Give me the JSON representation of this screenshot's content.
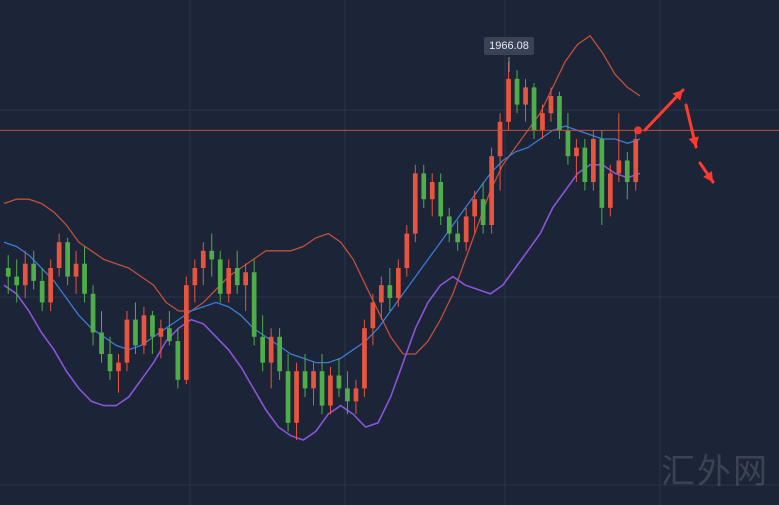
{
  "watermark": "汇外网",
  "chart_data": {
    "type": "candlestick",
    "price_label": "1966.08",
    "ylim": [
      1880,
      1980
    ],
    "horizontal_level": 1952,
    "colors": {
      "background": "#1c2438",
      "grid": "#2c3550",
      "up": "#e8553f",
      "down": "#4fae49",
      "middle_band": "#3b7bd1",
      "upper_band": "#c0503a",
      "lower_band": "#8a55d8",
      "level_line": "#c0503a",
      "arrow": "#ff3b2f"
    },
    "candles": [
      {
        "o": 1920,
        "h": 1923,
        "l": 1914,
        "c": 1918
      },
      {
        "o": 1918,
        "h": 1922,
        "l": 1912,
        "c": 1916
      },
      {
        "o": 1916,
        "h": 1924,
        "l": 1913,
        "c": 1921
      },
      {
        "o": 1921,
        "h": 1924,
        "l": 1915,
        "c": 1917
      },
      {
        "o": 1917,
        "h": 1920,
        "l": 1910,
        "c": 1912
      },
      {
        "o": 1912,
        "h": 1922,
        "l": 1910,
        "c": 1920
      },
      {
        "o": 1920,
        "h": 1928,
        "l": 1918,
        "c": 1926
      },
      {
        "o": 1926,
        "h": 1927,
        "l": 1916,
        "c": 1918
      },
      {
        "o": 1918,
        "h": 1924,
        "l": 1914,
        "c": 1921
      },
      {
        "o": 1921,
        "h": 1925,
        "l": 1912,
        "c": 1914
      },
      {
        "o": 1914,
        "h": 1916,
        "l": 1902,
        "c": 1905
      },
      {
        "o": 1905,
        "h": 1910,
        "l": 1898,
        "c": 1900
      },
      {
        "o": 1900,
        "h": 1904,
        "l": 1894,
        "c": 1896
      },
      {
        "o": 1896,
        "h": 1900,
        "l": 1891,
        "c": 1898
      },
      {
        "o": 1898,
        "h": 1910,
        "l": 1896,
        "c": 1908
      },
      {
        "o": 1908,
        "h": 1912,
        "l": 1900,
        "c": 1902
      },
      {
        "o": 1902,
        "h": 1911,
        "l": 1900,
        "c": 1909
      },
      {
        "o": 1909,
        "h": 1910,
        "l": 1900,
        "c": 1904
      },
      {
        "o": 1904,
        "h": 1908,
        "l": 1899,
        "c": 1906
      },
      {
        "o": 1906,
        "h": 1910,
        "l": 1902,
        "c": 1903
      },
      {
        "o": 1903,
        "h": 1906,
        "l": 1892,
        "c": 1894
      },
      {
        "o": 1894,
        "h": 1918,
        "l": 1893,
        "c": 1916
      },
      {
        "o": 1916,
        "h": 1922,
        "l": 1912,
        "c": 1920
      },
      {
        "o": 1920,
        "h": 1926,
        "l": 1916,
        "c": 1924
      },
      {
        "o": 1924,
        "h": 1928,
        "l": 1918,
        "c": 1922
      },
      {
        "o": 1922,
        "h": 1924,
        "l": 1912,
        "c": 1914
      },
      {
        "o": 1914,
        "h": 1922,
        "l": 1912,
        "c": 1920
      },
      {
        "o": 1920,
        "h": 1924,
        "l": 1914,
        "c": 1916
      },
      {
        "o": 1916,
        "h": 1921,
        "l": 1910,
        "c": 1919
      },
      {
        "o": 1919,
        "h": 1922,
        "l": 1902,
        "c": 1904
      },
      {
        "o": 1904,
        "h": 1909,
        "l": 1896,
        "c": 1898
      },
      {
        "o": 1898,
        "h": 1906,
        "l": 1892,
        "c": 1904
      },
      {
        "o": 1904,
        "h": 1906,
        "l": 1894,
        "c": 1896
      },
      {
        "o": 1896,
        "h": 1900,
        "l": 1882,
        "c": 1884
      },
      {
        "o": 1884,
        "h": 1898,
        "l": 1880,
        "c": 1896
      },
      {
        "o": 1896,
        "h": 1900,
        "l": 1890,
        "c": 1892
      },
      {
        "o": 1892,
        "h": 1898,
        "l": 1888,
        "c": 1896
      },
      {
        "o": 1896,
        "h": 1900,
        "l": 1886,
        "c": 1888
      },
      {
        "o": 1888,
        "h": 1897,
        "l": 1886,
        "c": 1895
      },
      {
        "o": 1895,
        "h": 1899,
        "l": 1890,
        "c": 1892
      },
      {
        "o": 1892,
        "h": 1896,
        "l": 1886,
        "c": 1889
      },
      {
        "o": 1889,
        "h": 1894,
        "l": 1886,
        "c": 1892
      },
      {
        "o": 1892,
        "h": 1908,
        "l": 1890,
        "c": 1906
      },
      {
        "o": 1906,
        "h": 1914,
        "l": 1902,
        "c": 1912
      },
      {
        "o": 1912,
        "h": 1918,
        "l": 1908,
        "c": 1916
      },
      {
        "o": 1916,
        "h": 1920,
        "l": 1910,
        "c": 1913
      },
      {
        "o": 1913,
        "h": 1922,
        "l": 1911,
        "c": 1920
      },
      {
        "o": 1920,
        "h": 1930,
        "l": 1918,
        "c": 1928
      },
      {
        "o": 1928,
        "h": 1944,
        "l": 1926,
        "c": 1942
      },
      {
        "o": 1942,
        "h": 1944,
        "l": 1934,
        "c": 1936
      },
      {
        "o": 1936,
        "h": 1942,
        "l": 1932,
        "c": 1940
      },
      {
        "o": 1940,
        "h": 1942,
        "l": 1930,
        "c": 1932
      },
      {
        "o": 1932,
        "h": 1934,
        "l": 1926,
        "c": 1928
      },
      {
        "o": 1928,
        "h": 1931,
        "l": 1924,
        "c": 1926
      },
      {
        "o": 1926,
        "h": 1934,
        "l": 1924,
        "c": 1932
      },
      {
        "o": 1932,
        "h": 1938,
        "l": 1928,
        "c": 1936
      },
      {
        "o": 1936,
        "h": 1940,
        "l": 1928,
        "c": 1930
      },
      {
        "o": 1930,
        "h": 1948,
        "l": 1928,
        "c": 1946
      },
      {
        "o": 1946,
        "h": 1956,
        "l": 1938,
        "c": 1954
      },
      {
        "o": 1954,
        "h": 1968,
        "l": 1952,
        "c": 1964
      },
      {
        "o": 1964,
        "h": 1966,
        "l": 1956,
        "c": 1958
      },
      {
        "o": 1958,
        "h": 1964,
        "l": 1954,
        "c": 1962
      },
      {
        "o": 1962,
        "h": 1963,
        "l": 1950,
        "c": 1952
      },
      {
        "o": 1952,
        "h": 1958,
        "l": 1950,
        "c": 1956
      },
      {
        "o": 1956,
        "h": 1962,
        "l": 1954,
        "c": 1960
      },
      {
        "o": 1960,
        "h": 1961,
        "l": 1950,
        "c": 1952
      },
      {
        "o": 1952,
        "h": 1956,
        "l": 1944,
        "c": 1946
      },
      {
        "o": 1946,
        "h": 1950,
        "l": 1940,
        "c": 1948
      },
      {
        "o": 1948,
        "h": 1950,
        "l": 1938,
        "c": 1940
      },
      {
        "o": 1940,
        "h": 1952,
        "l": 1938,
        "c": 1950
      },
      {
        "o": 1950,
        "h": 1952,
        "l": 1930,
        "c": 1934
      },
      {
        "o": 1934,
        "h": 1944,
        "l": 1932,
        "c": 1942
      },
      {
        "o": 1942,
        "h": 1956,
        "l": 1940,
        "c": 1945
      },
      {
        "o": 1945,
        "h": 1947,
        "l": 1936,
        "c": 1940
      },
      {
        "o": 1940,
        "h": 1952,
        "l": 1938,
        "c": 1950
      }
    ],
    "upper_band": [
      1935,
      1936,
      1936,
      1935,
      1933,
      1930,
      1926,
      1924,
      1922,
      1921,
      1920,
      1918,
      1916,
      1912,
      1910,
      1910,
      1912,
      1915,
      1918,
      1920,
      1922,
      1924,
      1924,
      1924,
      1925,
      1927,
      1928,
      1926,
      1922,
      1916,
      1910,
      1904,
      1900,
      1900,
      1903,
      1908,
      1914,
      1922,
      1930,
      1938,
      1944,
      1948,
      1952,
      1956,
      1962,
      1968,
      1972,
      1974,
      1970,
      1965,
      1962,
      1960
    ],
    "middle_band": [
      1926,
      1925,
      1923,
      1920,
      1917,
      1913,
      1909,
      1906,
      1904,
      1902,
      1901,
      1902,
      1904,
      1906,
      1908,
      1910,
      1911,
      1912,
      1911,
      1909,
      1906,
      1904,
      1902,
      1900,
      1899,
      1898,
      1898,
      1899,
      1901,
      1903,
      1906,
      1910,
      1914,
      1918,
      1922,
      1926,
      1930,
      1934,
      1938,
      1942,
      1945,
      1947,
      1948,
      1950,
      1952,
      1953,
      1952,
      1951,
      1950,
      1950,
      1949,
      1950
    ],
    "lower_band": [
      1916,
      1914,
      1910,
      1905,
      1901,
      1896,
      1892,
      1889,
      1888,
      1888,
      1890,
      1894,
      1898,
      1903,
      1906,
      1908,
      1907,
      1904,
      1901,
      1897,
      1892,
      1887,
      1883,
      1881,
      1880,
      1882,
      1886,
      1888,
      1886,
      1883,
      1884,
      1890,
      1898,
      1906,
      1912,
      1916,
      1918,
      1916,
      1915,
      1914,
      1916,
      1920,
      1924,
      1928,
      1934,
      1938,
      1942,
      1944,
      1944,
      1942,
      1941,
      1942
    ]
  }
}
